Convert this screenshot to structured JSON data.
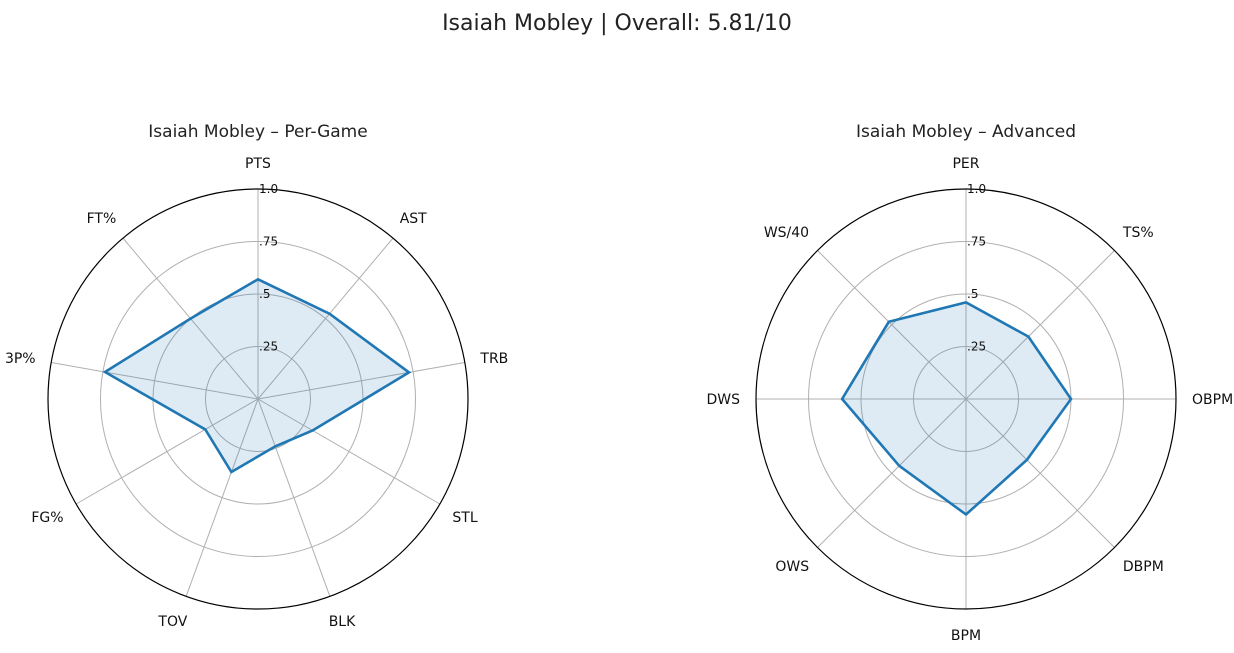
{
  "figure": {
    "title": "Isaiah Mobley | Overall: 5.81/10"
  },
  "chart_data": [
    {
      "type": "radar",
      "title": "Isaiah Mobley – Per-Game",
      "categories": [
        "PTS",
        "AST",
        "TRB",
        "STL",
        "BLK",
        "TOV",
        "FG%",
        "3P%",
        "FT%"
      ],
      "values": [
        0.57,
        0.53,
        0.73,
        0.3,
        0.24,
        0.37,
        0.29,
        0.74,
        0.5
      ],
      "rlim": [
        0,
        1.0
      ],
      "rticks": [
        0.25,
        0.5,
        0.75,
        1.0
      ],
      "rtick_labels": [
        ".25",
        ".5",
        ".75",
        "1.0"
      ],
      "grid": true,
      "colors": {
        "line": "#1f77b4",
        "fill": "#1f77b4",
        "grid": "#b0b0b0",
        "spine": "#000000"
      }
    },
    {
      "type": "radar",
      "title": "Isaiah Mobley – Advanced",
      "categories": [
        "PER",
        "TS%",
        "OBPM",
        "DBPM",
        "BPM",
        "OWS",
        "DWS",
        "WS/40"
      ],
      "values": [
        0.46,
        0.42,
        0.5,
        0.41,
        0.55,
        0.45,
        0.59,
        0.52
      ],
      "rlim": [
        0,
        1.0
      ],
      "rticks": [
        0.25,
        0.5,
        0.75,
        1.0
      ],
      "rtick_labels": [
        ".25",
        ".5",
        ".75",
        "1.0"
      ],
      "grid": true,
      "colors": {
        "line": "#1f77b4",
        "fill": "#1f77b4",
        "grid": "#b0b0b0",
        "spine": "#000000"
      }
    }
  ]
}
